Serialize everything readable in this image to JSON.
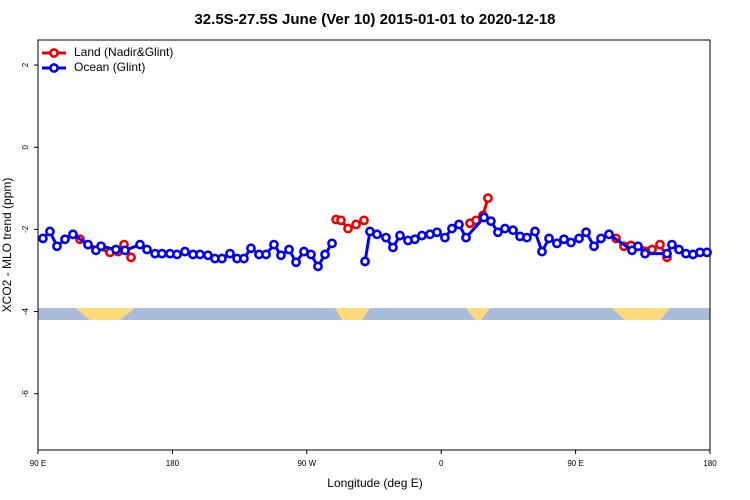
{
  "chart_data": {
    "type": "line",
    "title": "32.5S-27.5S June (Ver 10)   2015-01-01 to 2020-12-18",
    "xlabel": "Longitude (deg E)",
    "ylabel": "XCO2 - MLO trend (ppm)",
    "xlim": [
      90,
      540
    ],
    "ylim": [
      -7.37,
      2.61
    ],
    "xticks": [
      {
        "value": 90,
        "label": "90 E"
      },
      180,
      {
        "value": 270,
        "label": "90 W"
      },
      {
        "value": 360,
        "label": "0"
      },
      {
        "value": 450,
        "label": "90 E"
      },
      {
        "value": 540,
        "label": "180"
      }
    ],
    "yticks": [
      -6,
      -4,
      -2,
      0,
      2
    ],
    "legend": "top-left",
    "series": [
      {
        "name": "Land (Nadir&Glint)",
        "color": "#ee0000",
        "x": [
          118.1,
          123.5,
          138.2,
          143.6,
          147.6,
          152.3,
          null,
          289.6,
          292.9,
          297.6,
          303,
          308.3,
          null,
          379.3,
          383.3,
          388,
          391.3,
          null,
          477.1,
          482.4,
          487.1,
          501.2,
          506.5,
          511.2
        ],
        "values": [
          -2.24,
          -2.37,
          -2.56,
          -2.54,
          -2.37,
          -2.68,
          null,
          -1.76,
          -1.78,
          -1.98,
          -1.88,
          -1.78,
          null,
          -1.85,
          -1.78,
          -1.66,
          -1.24,
          null,
          -2.22,
          -2.41,
          -2.39,
          -2.49,
          -2.37,
          -2.68
        ]
      },
      {
        "name": "Ocean (Glint)",
        "color": "#0000ee",
        "x": [
          93.3,
          98,
          102.7,
          108.1,
          113.4,
          123.5,
          128.8,
          132.2,
          142.2,
          148.3,
          158.3,
          163,
          168.4,
          173,
          178.4,
          183.1,
          188.4,
          193.8,
          198.5,
          203.8,
          208.5,
          213.2,
          218.6,
          223.3,
          227.9,
          232.6,
          238,
          242.7,
          248,
          252.7,
          258.1,
          262.8,
          268.1,
          272.8,
          277.5,
          282.2,
          286.9,
          null,
          309,
          312.3,
          317,
          323,
          327.7,
          332.4,
          337.8,
          342.4,
          347.1,
          352.5,
          357.2,
          362.5,
          367.2,
          371.9,
          376.6,
          388.7,
          393.3,
          398,
          402.7,
          408.1,
          412.8,
          417.4,
          422.8,
          427.5,
          432.2,
          437.5,
          442.2,
          446.9,
          452.3,
          457,
          462.3,
          467,
          472.4,
          487.8,
          491.8,
          496.5,
          511.2,
          514.5,
          519.2,
          523.9,
          528.6,
          533.3,
          538
        ],
        "values": [
          -2.22,
          -2.05,
          -2.41,
          -2.24,
          -2.12,
          -2.37,
          -2.51,
          -2.41,
          -2.49,
          -2.51,
          -2.37,
          -2.49,
          -2.59,
          -2.59,
          -2.59,
          -2.61,
          -2.54,
          -2.61,
          -2.61,
          -2.63,
          -2.71,
          -2.71,
          -2.59,
          -2.71,
          -2.71,
          -2.46,
          -2.61,
          -2.61,
          -2.37,
          -2.63,
          -2.49,
          -2.8,
          -2.54,
          -2.61,
          -2.9,
          -2.61,
          -2.34,
          null,
          -2.78,
          -2.05,
          -2.12,
          -2.2,
          -2.44,
          -2.15,
          -2.27,
          -2.24,
          -2.15,
          -2.12,
          -2.07,
          -2.2,
          -1.98,
          -1.88,
          -2.2,
          -1.71,
          -1.8,
          -2.07,
          -1.98,
          -2.02,
          -2.17,
          -2.2,
          -2.05,
          -2.54,
          -2.22,
          -2.34,
          -2.24,
          -2.32,
          -2.22,
          -2.07,
          -2.41,
          -2.22,
          -2.12,
          -2.51,
          -2.41,
          -2.59,
          -2.59,
          -2.37,
          -2.49,
          -2.59,
          -2.61,
          -2.56,
          -2.56
        ]
      }
    ]
  }
}
